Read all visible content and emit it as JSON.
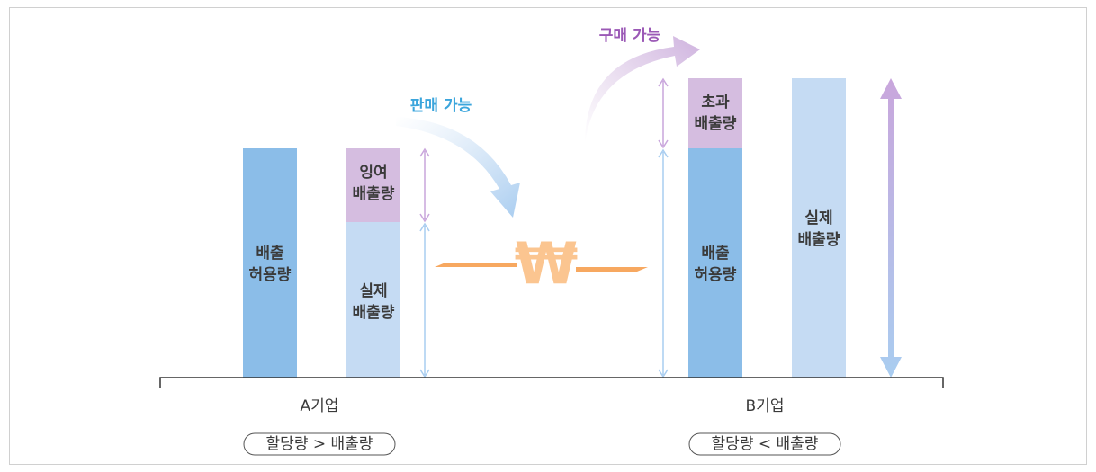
{
  "company_a": {
    "name": "A기업",
    "condition": "할당량 > 배출량",
    "allowance": [
      "배출",
      "허용량"
    ],
    "surplus": [
      "잉여",
      "배출량"
    ],
    "actual": [
      "실제",
      "배출량"
    ]
  },
  "company_b": {
    "name": "B기업",
    "condition": "할당량 < 배출량",
    "excess": [
      "초과",
      "배출량"
    ],
    "allowance": [
      "배출",
      "허용량"
    ],
    "actual": [
      "실제",
      "배출량"
    ]
  },
  "sell": "판매 가능",
  "buy": "구매 가능",
  "currency": "₩"
}
